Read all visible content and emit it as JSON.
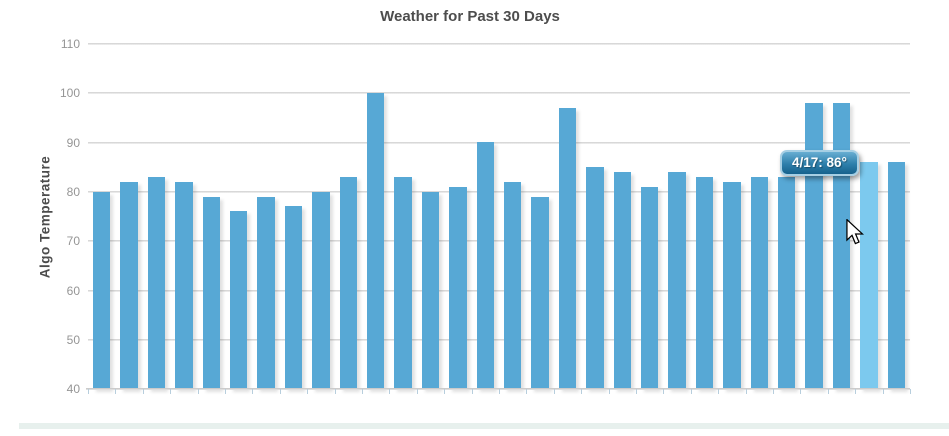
{
  "chart": {
    "title": "Weather for Past 30 Days",
    "y_axis_label": "Algo Temperature",
    "tooltip": {
      "text": "4/17: 86°"
    }
  },
  "chart_data": {
    "type": "bar",
    "title": "Weather for Past 30 Days",
    "xlabel": "",
    "ylabel": "Algo Temperature",
    "ylim": [
      40,
      110
    ],
    "y_ticks": [
      110,
      100,
      90,
      80,
      70,
      60,
      50,
      40
    ],
    "grid": true,
    "legend": "none",
    "bar_count": 30,
    "values": [
      80,
      82,
      83,
      82,
      79,
      76,
      79,
      77,
      80,
      83,
      100,
      83,
      80,
      81,
      90,
      82,
      79,
      97,
      85,
      84,
      81,
      84,
      83,
      82,
      83,
      83,
      98,
      98,
      86,
      86
    ],
    "highlighted_index": 28,
    "tooltip": {
      "label": "4/17",
      "value": 86,
      "text": "4/17: 86°"
    }
  },
  "colors": {
    "bar": "#57a8d5",
    "bar_highlight": "#7cc9ee",
    "gridline": "#d8d8d8",
    "axis_line": "#c4c4c4",
    "x_tick": "#b7cedd",
    "title_text": "#4d4d4d",
    "tick_label_text": "#959595",
    "tooltip_border": "#a6cfe4",
    "tooltip_bg_top": "#68aed2",
    "tooltip_bg_bottom": "#16618c",
    "bottom_strip": "#e7f0ed"
  }
}
